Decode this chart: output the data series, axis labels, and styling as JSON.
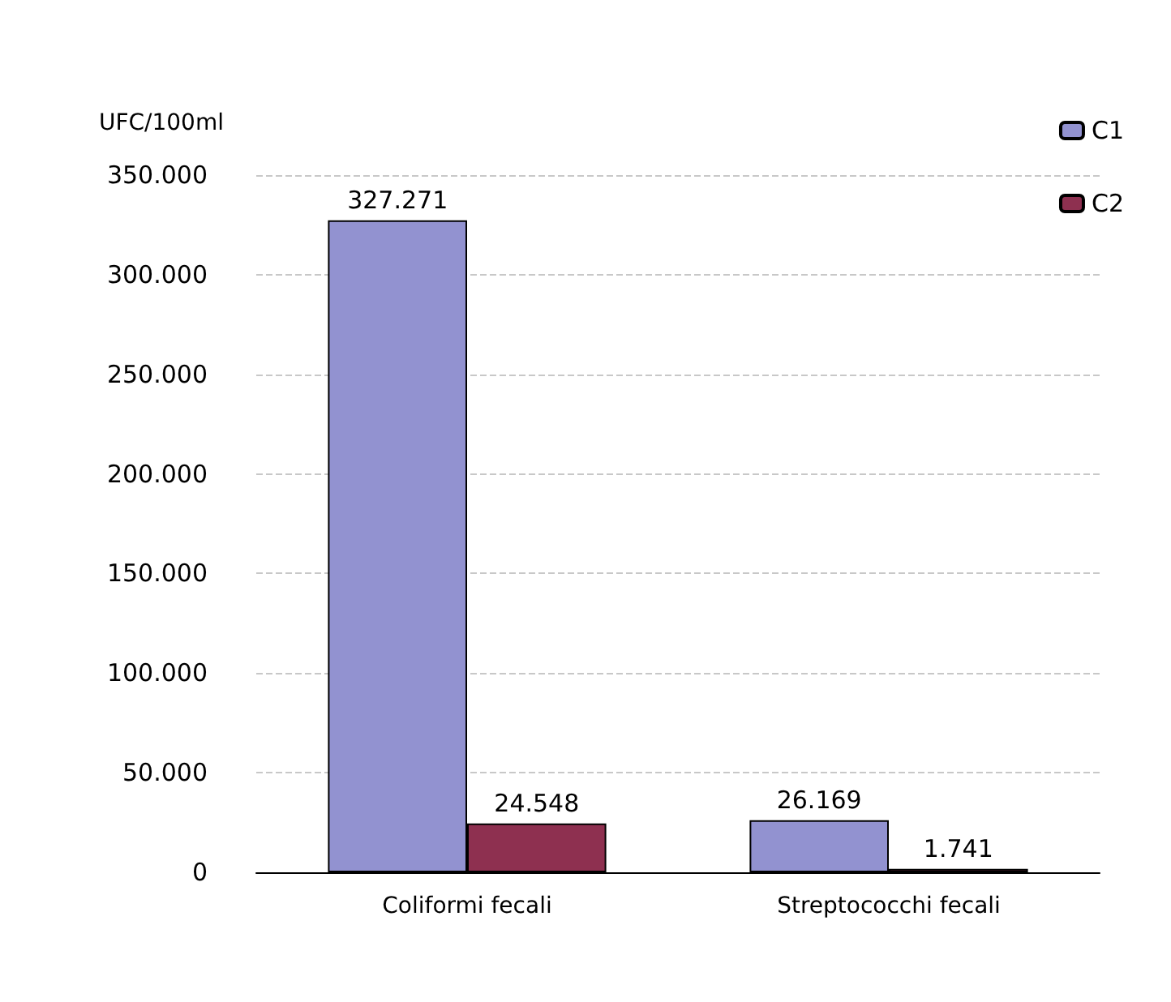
{
  "chart_data": {
    "type": "bar",
    "ylabel": "UFC/100ml",
    "categories": [
      "Coliformi fecali",
      "Streptococchi fecali"
    ],
    "series": [
      {
        "name": "C1",
        "color": "#9292d0",
        "values": [
          327271,
          26169
        ],
        "value_labels": [
          "327.271",
          "26.169"
        ]
      },
      {
        "name": "C2",
        "color": "#8e3050",
        "values": [
          24548,
          1741
        ],
        "value_labels": [
          "24.548",
          "1.741"
        ]
      }
    ],
    "ylim": [
      0,
      350000
    ],
    "yticks": [
      0,
      {
        "value": 50000,
        "label": "50.000"
      },
      {
        "value": 100000,
        "label": "100.000"
      },
      {
        "value": 150000,
        "label": "150.000"
      },
      {
        "value": 200000,
        "label": "200.000"
      },
      {
        "value": 250000,
        "label": "250.000"
      },
      {
        "value": 300000,
        "label": "300.000"
      },
      {
        "value": 350000,
        "label": "350.000"
      }
    ],
    "grid": "y",
    "legend": "top right"
  }
}
